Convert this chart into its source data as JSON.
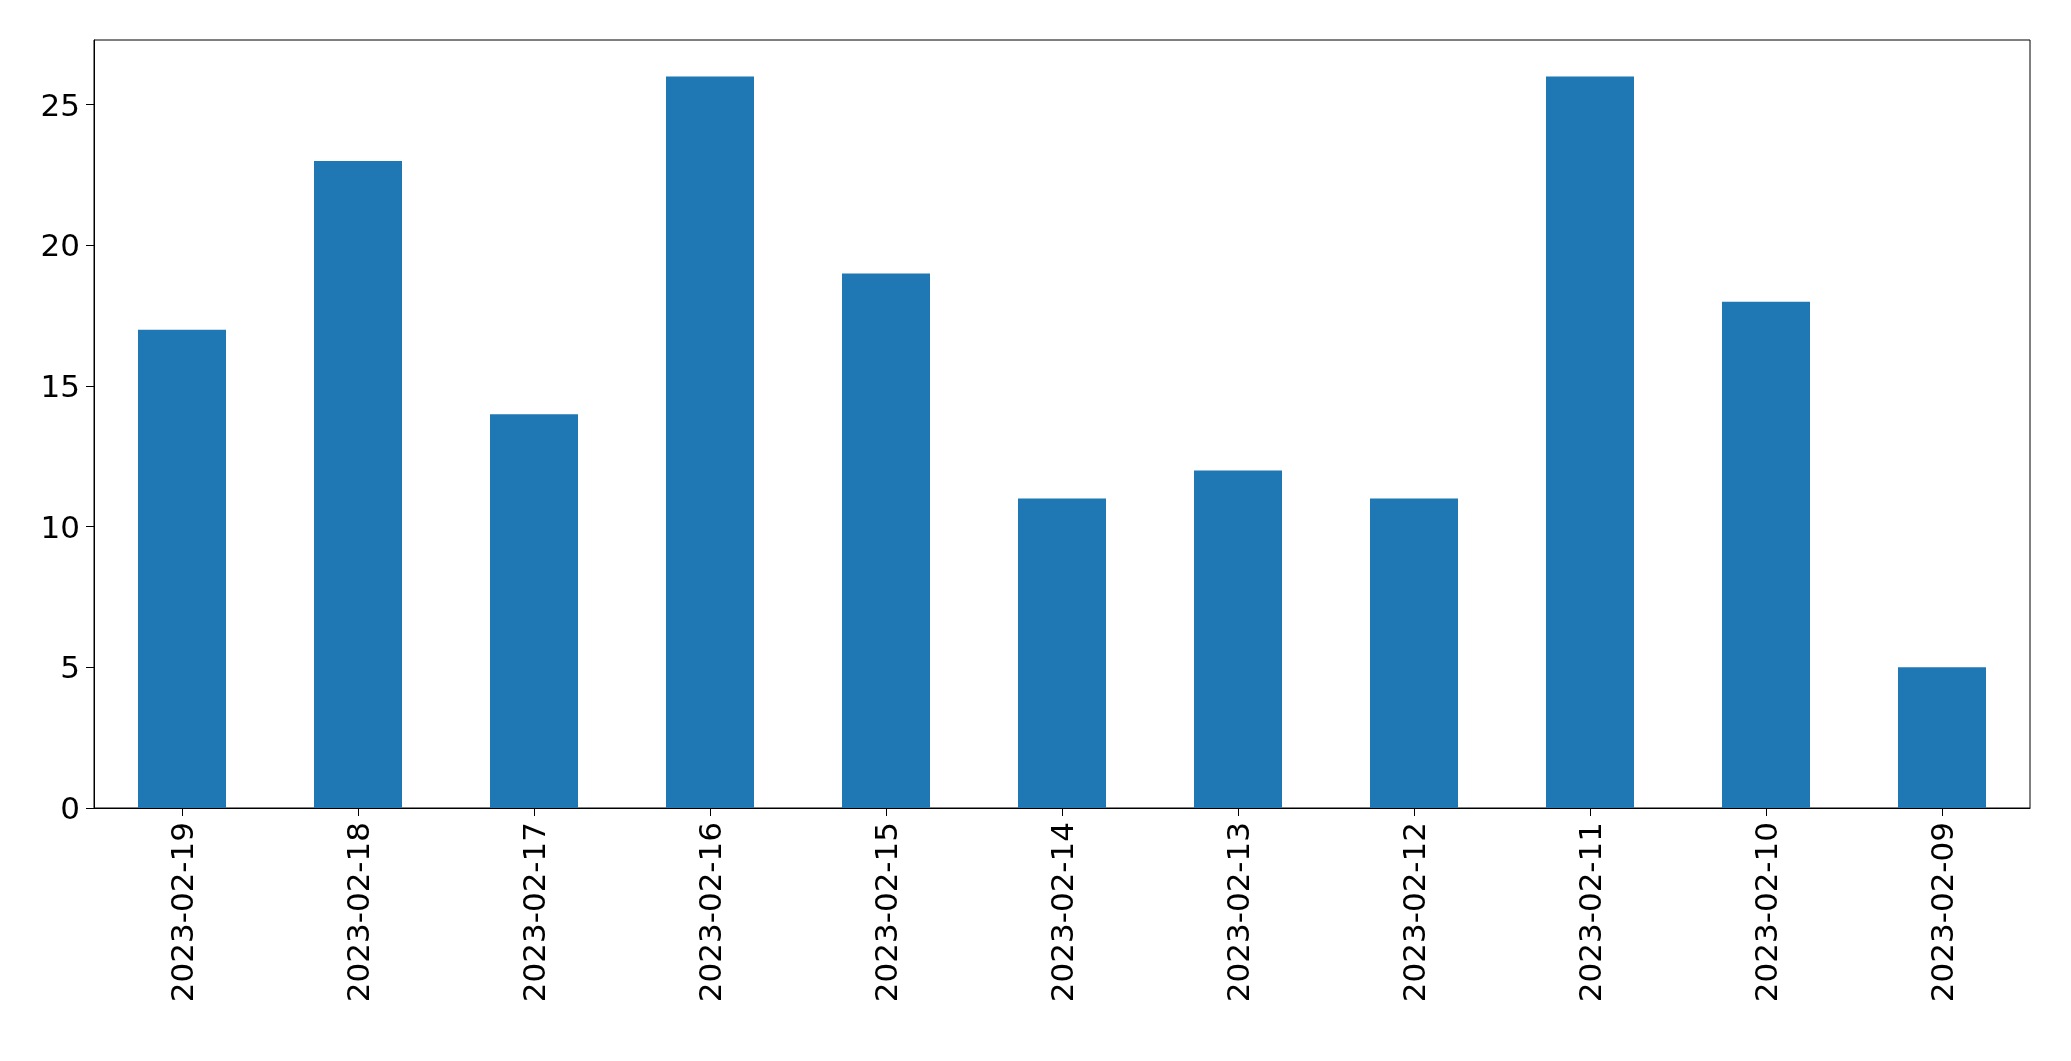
{
  "chart_data": {
    "type": "bar",
    "categories": [
      "2023-02-19",
      "2023-02-18",
      "2023-02-17",
      "2023-02-16",
      "2023-02-15",
      "2023-02-14",
      "2023-02-13",
      "2023-02-12",
      "2023-02-11",
      "2023-02-10",
      "2023-02-09"
    ],
    "values": [
      17,
      23,
      14,
      26,
      19,
      11,
      12,
      11,
      26,
      18,
      5
    ],
    "color": "#1f77b4",
    "ylim": [
      0,
      27.3
    ],
    "yticks": [
      0,
      5,
      10,
      15,
      20,
      25
    ],
    "grid": false
  }
}
